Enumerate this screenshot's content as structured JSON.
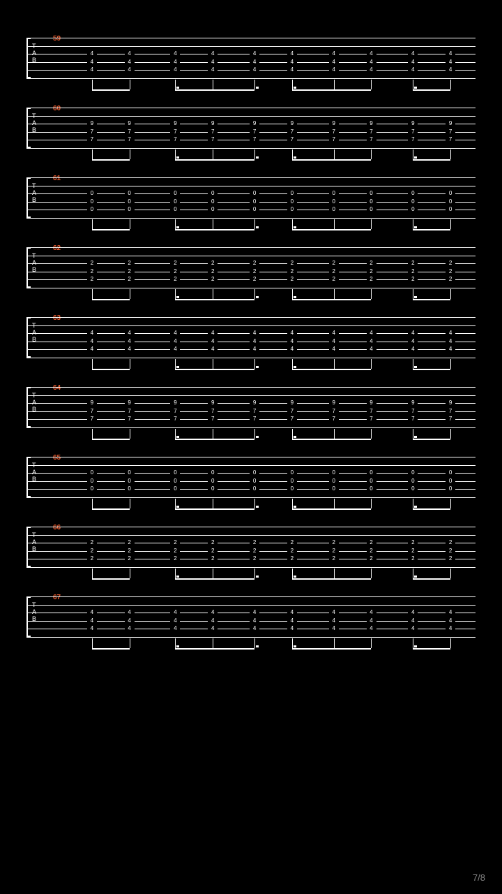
{
  "page_number": "7/8",
  "background_color": "#000000",
  "staff_line_color": "#ffffff",
  "note_color": "#ffffff",
  "measure_number_color": "#e85a2e",
  "page_number_color": "#888888",
  "tab_label": [
    "T",
    "A",
    "B"
  ],
  "string_count": 6,
  "staff_height": 58,
  "note_columns_x_percent": [
    8,
    17,
    28,
    37,
    47,
    56,
    66,
    75,
    85,
    94
  ],
  "beam_groups": [
    {
      "start": 8,
      "end": 17,
      "dots": []
    },
    {
      "start": 28,
      "end": 47,
      "dots": [
        28,
        47
      ]
    },
    {
      "start": 56,
      "end": 75,
      "dots": [
        56
      ]
    },
    {
      "start": 85,
      "end": 94,
      "dots": [
        85
      ]
    }
  ],
  "measures": [
    {
      "number": "59",
      "frets": {
        "string3": "4",
        "string4": "4",
        "string5": "4"
      }
    },
    {
      "number": "60",
      "frets": {
        "string3": "9",
        "string4": "7",
        "string5": "7"
      }
    },
    {
      "number": "61",
      "frets": {
        "string3": "0",
        "string4": "0",
        "string5": "0"
      }
    },
    {
      "number": "62",
      "frets": {
        "string3": "2",
        "string4": "2",
        "string5": "2"
      }
    },
    {
      "number": "63",
      "frets": {
        "string3": "4",
        "string4": "4",
        "string5": "4"
      }
    },
    {
      "number": "64",
      "frets": {
        "string3": "9",
        "string4": "7",
        "string5": "7"
      }
    },
    {
      "number": "65",
      "frets": {
        "string3": "0",
        "string4": "0",
        "string5": "0"
      }
    },
    {
      "number": "66",
      "frets": {
        "string3": "2",
        "string4": "2",
        "string5": "2"
      }
    },
    {
      "number": "67",
      "frets": {
        "string3": "4",
        "string4": "4",
        "string5": "4"
      }
    }
  ]
}
